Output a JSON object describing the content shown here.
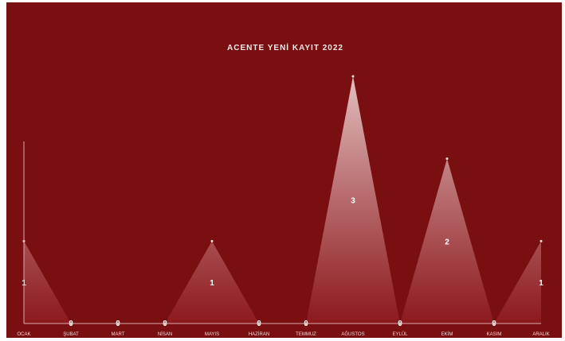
{
  "chart_data": {
    "type": "area",
    "title": "ACENTE YENİ KAYIT 2022",
    "categories": [
      "OCAK",
      "ŞUBAT",
      "MART",
      "NİSAN",
      "MAYIS",
      "HAZİRAN",
      "TEMMUZ",
      "AĞUSTOS",
      "EYLÜL",
      "EKİM",
      "KASIM",
      "ARALIK"
    ],
    "values": [
      1,
      0,
      0,
      0,
      1,
      0,
      0,
      3,
      0,
      2,
      0,
      1
    ],
    "ylim": [
      0,
      3
    ],
    "grid": false,
    "legend": "none"
  },
  "colors": {
    "background": "#7a0f12",
    "peak_fill_top": "#e8c8c8",
    "peak_fill_bottom": "#8e1a1e",
    "axis": "#d9a9a9"
  }
}
